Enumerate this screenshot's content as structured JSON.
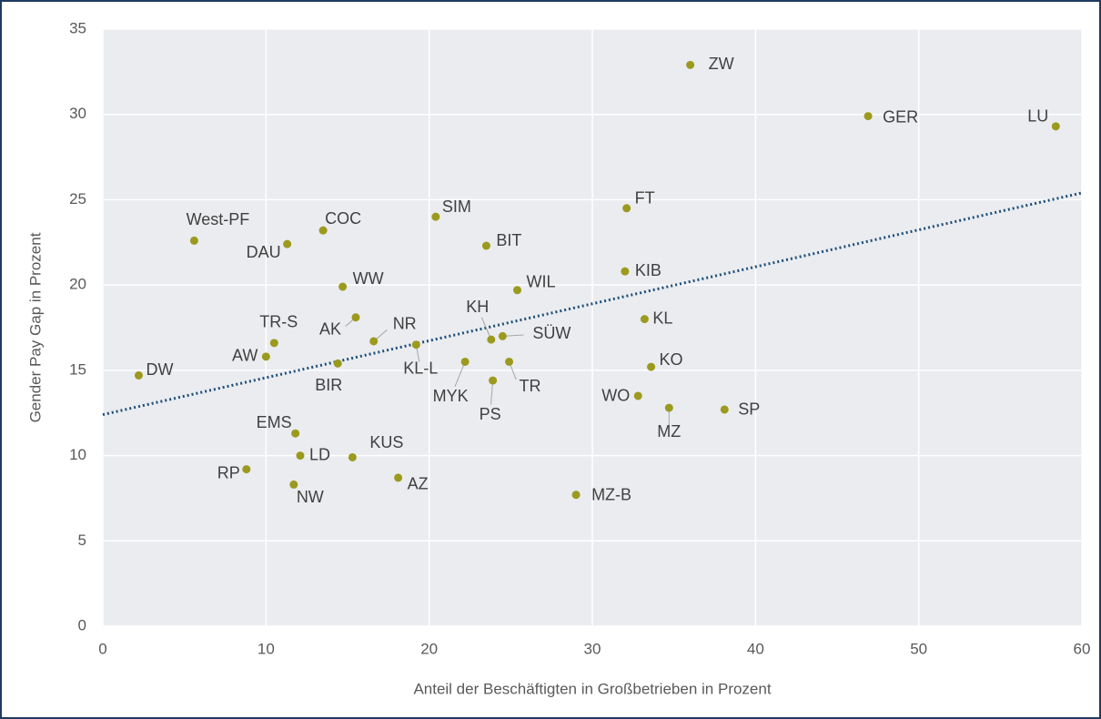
{
  "chart_data": {
    "type": "scatter",
    "xlabel": "Anteil der Beschäftigten in Großbetrieben in Prozent",
    "ylabel": "Gender Pay Gap in Prozent",
    "point_labels": [
      "ZW",
      "GER",
      "LU",
      "FT",
      "SIM",
      "COC",
      "West-PF",
      "DAU",
      "BIT",
      "KIB",
      "WW",
      "WIL",
      "AK",
      "KL",
      "NR",
      "KH",
      "SÜW",
      "TR-S",
      "KL-L",
      "AW",
      "BIR",
      "DW",
      "MYK",
      "TR",
      "KO",
      "PS",
      "WO",
      "MZ",
      "SP",
      "EMS",
      "LD",
      "KUS",
      "RP",
      "NW",
      "AZ",
      "MZ-B"
    ],
    "x": [
      36.0,
      46.9,
      58.4,
      32.1,
      20.4,
      13.5,
      5.6,
      11.3,
      23.5,
      32.0,
      14.7,
      25.4,
      15.5,
      33.2,
      16.6,
      23.8,
      24.5,
      10.5,
      19.2,
      10.0,
      14.4,
      2.2,
      22.2,
      24.9,
      33.6,
      23.9,
      32.8,
      34.7,
      38.1,
      11.8,
      12.1,
      15.3,
      8.8,
      11.7,
      18.1,
      29.0
    ],
    "values": [
      32.9,
      29.9,
      29.3,
      24.5,
      24.0,
      23.2,
      22.6,
      22.4,
      22.3,
      20.8,
      19.9,
      19.7,
      18.1,
      18.0,
      16.7,
      16.8,
      17.0,
      16.6,
      16.5,
      15.8,
      15.4,
      14.7,
      15.5,
      15.5,
      15.2,
      14.4,
      13.5,
      12.8,
      12.7,
      11.3,
      10.0,
      9.9,
      9.2,
      8.3,
      8.7,
      7.7
    ],
    "color": "#9c9a1e",
    "trendline": {
      "x": [
        0,
        60
      ],
      "values": [
        12.4,
        25.4
      ],
      "color": "#1f4e79"
    },
    "xlim": [
      0,
      60
    ],
    "xticks": [
      0,
      10,
      20,
      30,
      40,
      50,
      60
    ],
    "ylim": [
      0,
      35
    ],
    "yticks": [
      0,
      5,
      10,
      15,
      20,
      25,
      30,
      35
    ],
    "grid": true
  }
}
